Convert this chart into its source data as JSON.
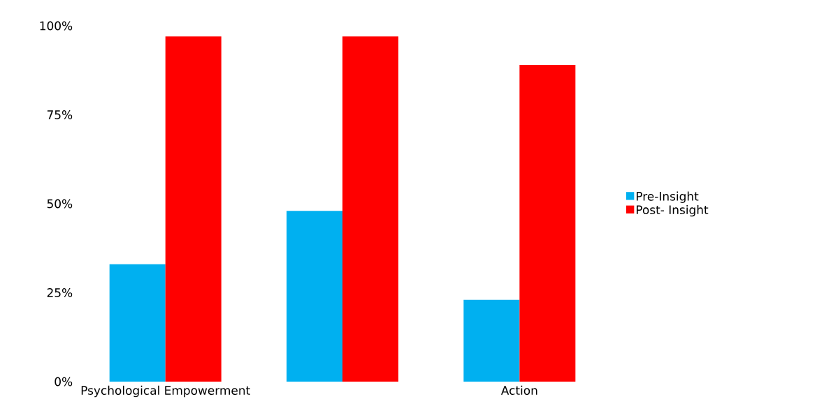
{
  "chart_data": {
    "type": "bar",
    "categories": [
      "Psychological Empowerment",
      null,
      "Action"
    ],
    "series": [
      {
        "name": "Pre-Insight",
        "color": "#00b0f0",
        "values": [
          33,
          48,
          23
        ]
      },
      {
        "name": "Post- Insight",
        "color": "#ff0000",
        "values": [
          97,
          97,
          89
        ]
      }
    ],
    "ylim": [
      0,
      100
    ],
    "yticks": [
      {
        "value": 0,
        "label": "0%"
      },
      {
        "value": 25,
        "label": "25%"
      },
      {
        "value": 50,
        "label": "50%"
      },
      {
        "value": 75,
        "label": "75%"
      },
      {
        "value": 100,
        "label": "100%"
      }
    ],
    "legend": "right"
  }
}
